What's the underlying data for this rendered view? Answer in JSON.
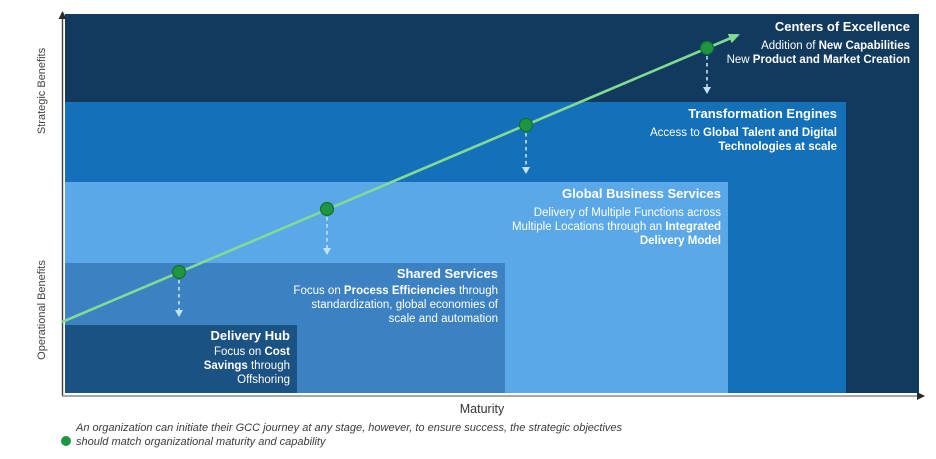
{
  "colors": {
    "navy": "#123A5F",
    "blue-strong": "#1470B8",
    "blue-light": "#5BA8E8",
    "blue-slate": "#3C82C3",
    "blue-deep": "#1B5284",
    "trend-green": "#82DB92",
    "dot-green": "#1E9641",
    "dot-green-edge": "#156F33",
    "dash-blue": "#C2E3F2",
    "axis-dark": "#3F3F3F",
    "axis-gray": "#8A8A8A"
  },
  "axes": {
    "y_top_label": "Strategic Benefits",
    "y_bottom_label": "Operational Benefits",
    "x_label": "Maturity"
  },
  "stages": [
    {
      "title": "Delivery Hub",
      "desc_lines": [
        [
          {
            "t": "Focus on "
          },
          {
            "t": "Cost",
            "b": true
          }
        ],
        [
          {
            "t": "Savings",
            "b": true
          },
          {
            "t": " through"
          }
        ],
        [
          {
            "t": "Offshoring"
          }
        ]
      ]
    },
    {
      "title": "Shared Services",
      "desc_lines": [
        [
          {
            "t": "Focus on "
          },
          {
            "t": "Process Efficiencies",
            "b": true
          },
          {
            "t": " through"
          }
        ],
        [
          {
            "t": "standardization, global economies of"
          }
        ],
        [
          {
            "t": "scale and automation"
          }
        ]
      ]
    },
    {
      "title": "Global Business Services",
      "desc_lines": [
        [
          {
            "t": "Delivery of Multiple Functions across"
          }
        ],
        [
          {
            "t": "Multiple Locations through an "
          },
          {
            "t": "Integrated",
            "b": true
          }
        ],
        [
          {
            "t": "Delivery Model",
            "b": true
          }
        ]
      ]
    },
    {
      "title": "Transformation Engines",
      "desc_lines": [
        [
          {
            "t": "Access to "
          },
          {
            "t": "Global Talent and Digital",
            "b": true
          }
        ],
        [
          {
            "t": "Technologies at scale",
            "b": true
          }
        ]
      ]
    },
    {
      "title": "Centers of Excellence",
      "desc_lines": [
        [
          {
            "t": "Addition of "
          },
          {
            "t": "New Capabilities",
            "b": true
          }
        ],
        [
          {
            "t": "New "
          },
          {
            "t": "Product and Market Creation",
            "b": true
          }
        ]
      ]
    }
  ],
  "footnote": {
    "line1": "An organization can initiate their GCC journey at any stage, however, to ensure success, the strategic objectives",
    "line2": "should match organizational maturity and capability"
  }
}
